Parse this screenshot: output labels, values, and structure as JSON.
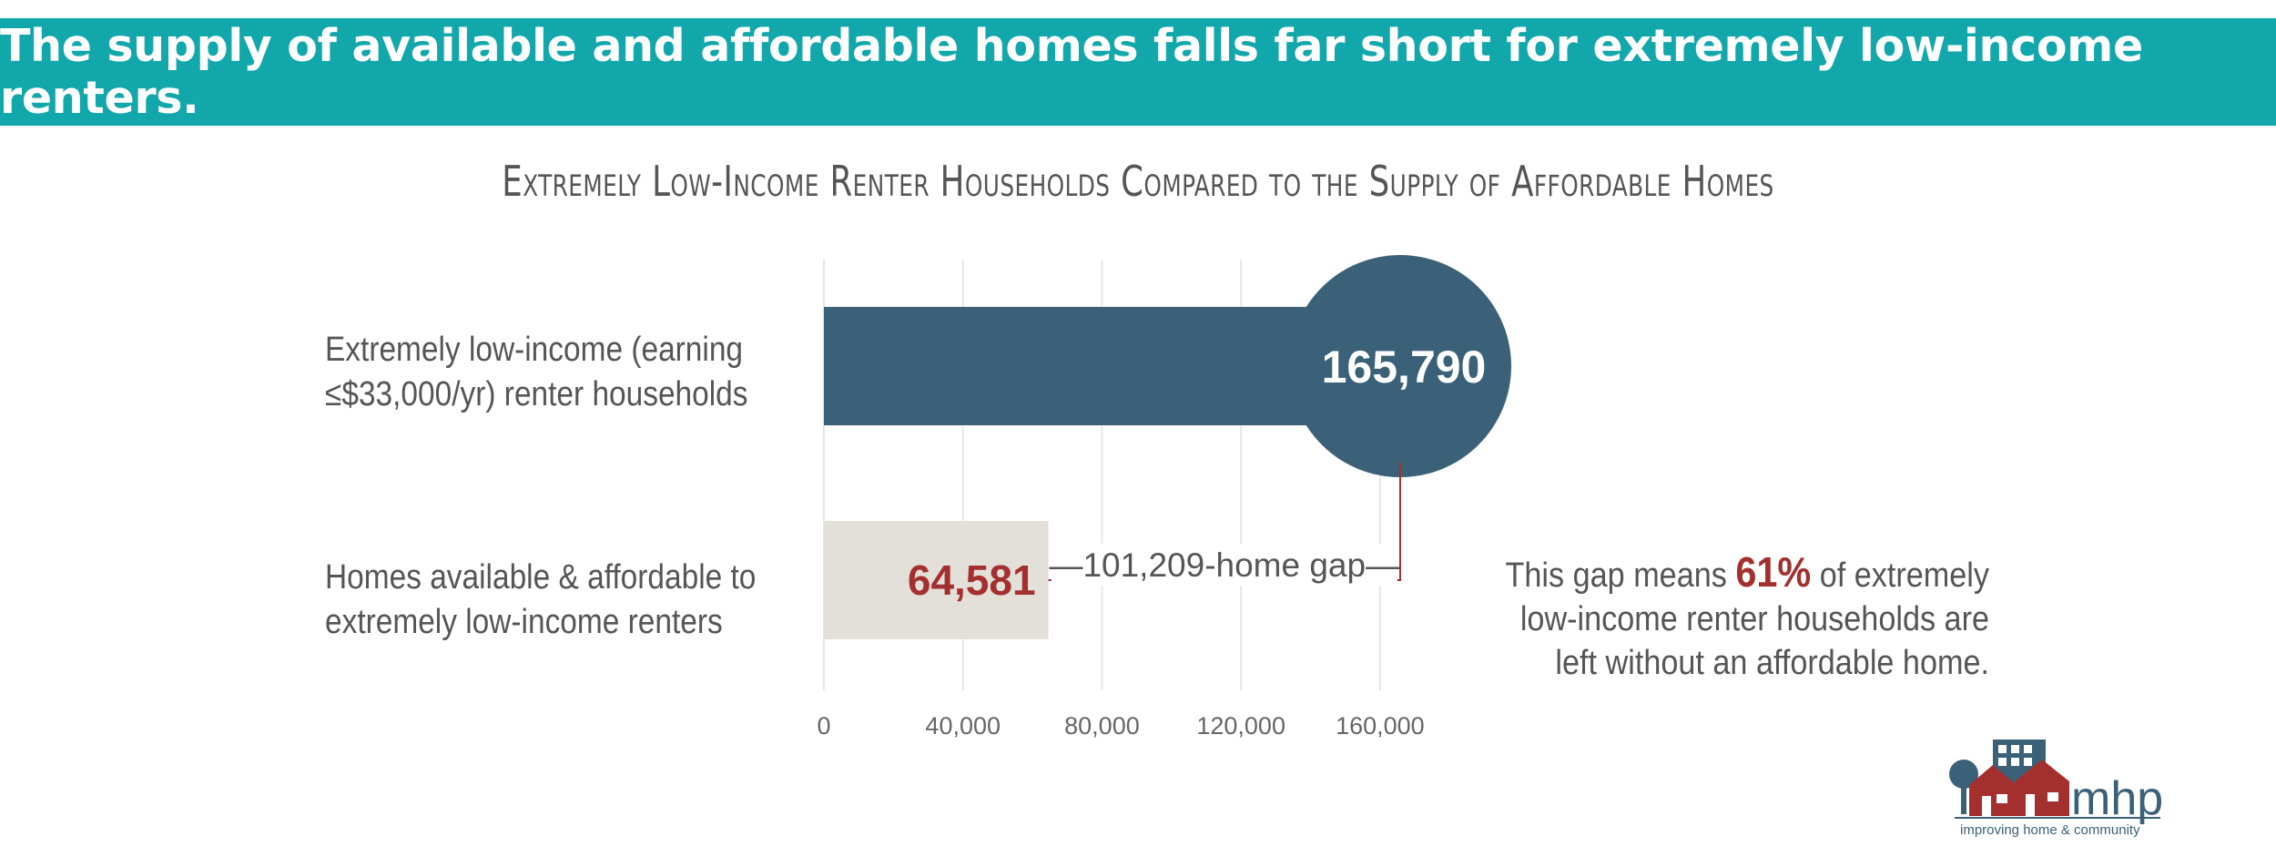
{
  "header": {
    "title": "The supply of available and affordable homes falls far short for extremely low-income renters."
  },
  "chart_data": {
    "type": "bar",
    "orientation": "horizontal",
    "title": "Extremely Low-Income Renter Households Compared to the Supply of Affordable Homes",
    "categories": [
      "Extremely low-income (earning ≤$33,000/yr) renter households",
      "Homes available & affordable to extremely low-income renters"
    ],
    "values": [
      165790,
      64581
    ],
    "value_labels": [
      "165,790",
      "64,581"
    ],
    "xlim": [
      0,
      165790
    ],
    "x_ticks": [
      0,
      40000,
      80000,
      120000,
      160000
    ],
    "x_tick_labels": [
      "0",
      "40,000",
      "80,000",
      "120,000",
      "160,000"
    ],
    "grid": true,
    "gap_annotation": "—101,209-home gap—",
    "colors": {
      "bar1": "#3b6178",
      "bar2": "#e3e0d9",
      "label2": "#a3302f",
      "gap_line": "#a3302f",
      "grid": "#e6e6e6"
    }
  },
  "labels": {
    "row1_line1": "Extremely low-income (earning",
    "row1_line2": "≤$33,000/yr) renter households",
    "row2_line1": "Homes available & affordable to",
    "row2_line2": "extremely low-income renters"
  },
  "note": {
    "before": "This gap means ",
    "percent": "61%",
    "after": " of extremely",
    "line2": "low-income renter households are",
    "line3": "left without an affordable home."
  },
  "logo": {
    "text": "mhp",
    "tagline": "improving home & community"
  }
}
